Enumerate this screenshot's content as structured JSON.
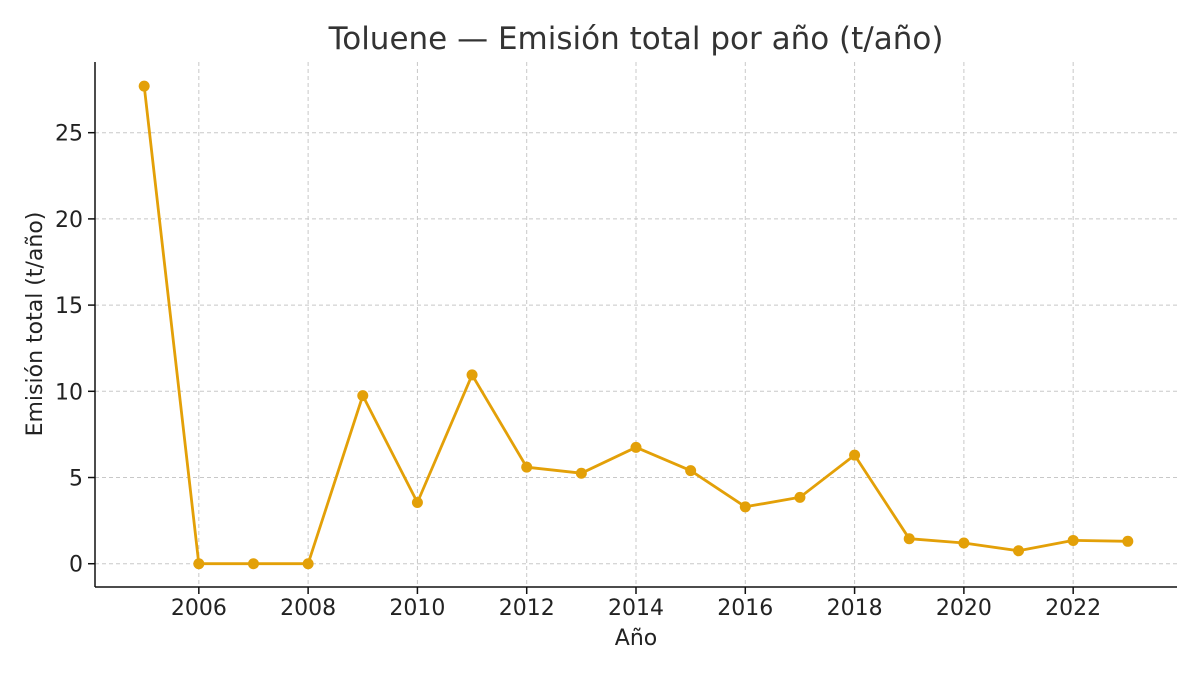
{
  "chart_data": {
    "type": "line",
    "title": "Toluene — Emisión total por año (t/año)",
    "xlabel": "Año",
    "ylabel": "Emisión total (t/año)",
    "x": [
      2005,
      2006,
      2007,
      2008,
      2009,
      2010,
      2011,
      2012,
      2013,
      2014,
      2015,
      2016,
      2017,
      2018,
      2019,
      2020,
      2021,
      2022,
      2023
    ],
    "series": [
      {
        "values": [
          27.7,
          0.0,
          0.0,
          0.0,
          9.75,
          3.55,
          10.95,
          5.6,
          5.25,
          6.75,
          5.4,
          3.3,
          3.85,
          6.3,
          1.45,
          1.2,
          0.75,
          1.35,
          1.3
        ],
        "color": "#E3A008"
      }
    ],
    "xticks": [
      "2006",
      "2008",
      "2010",
      "2012",
      "2014",
      "2016",
      "2018",
      "2020",
      "2022"
    ],
    "yticks": [
      "0",
      "5",
      "10",
      "15",
      "20",
      "25"
    ],
    "xlim": [
      2004.1,
      2023.9
    ],
    "ylim": [
      -1.35,
      29.1
    ],
    "grid": true
  }
}
